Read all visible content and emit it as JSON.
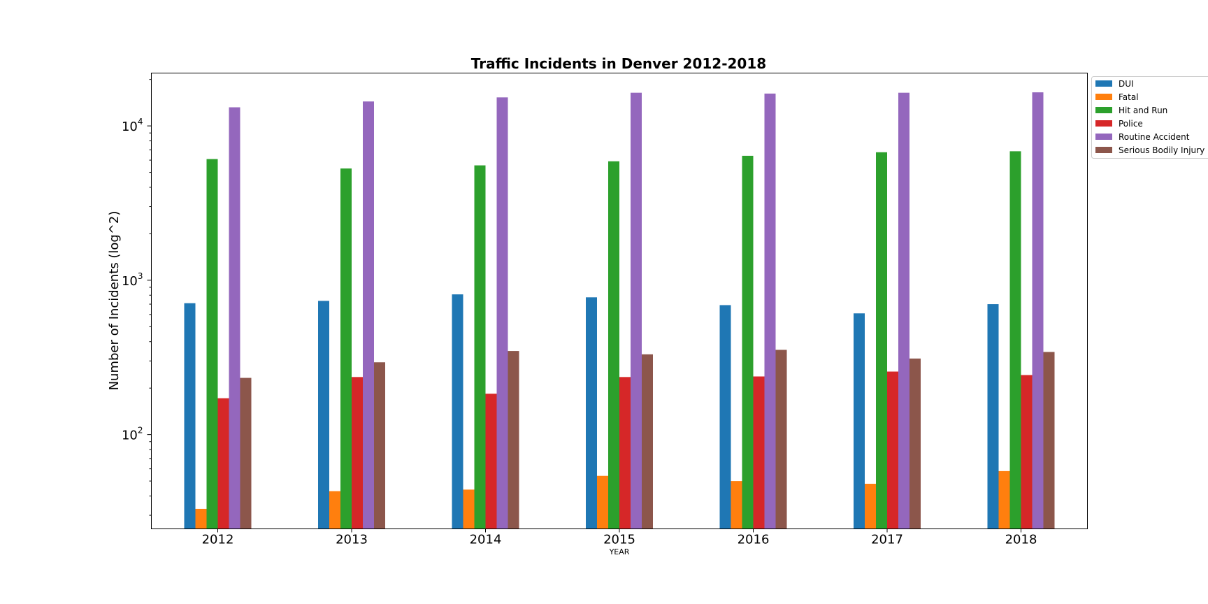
{
  "chart_data": {
    "type": "bar",
    "title": "Traffic Incidents in Denver 2012-2018",
    "xlabel": "YEAR",
    "ylabel": "Number of Incidents (log^2)",
    "yscale": "log",
    "ylim": [
      24.5,
      22000
    ],
    "ytick_labels": [
      {
        "value": 100,
        "base": "10",
        "exp": "2"
      },
      {
        "value": 1000,
        "base": "10",
        "exp": "3"
      },
      {
        "value": 10000,
        "base": "10",
        "exp": "4"
      }
    ],
    "categories": [
      "2012",
      "2013",
      "2014",
      "2015",
      "2016",
      "2017",
      "2018"
    ],
    "legend_position": "outside-top-right",
    "grid": false,
    "series": [
      {
        "name": "DUI",
        "color": "#1f77b4",
        "values": [
          710,
          735,
          810,
          775,
          690,
          610,
          700
        ]
      },
      {
        "name": "Fatal",
        "color": "#ff7f0e",
        "values": [
          33,
          43,
          44,
          54,
          50,
          48,
          58
        ]
      },
      {
        "name": "Hit and Run",
        "color": "#2ca02c",
        "values": [
          6100,
          5300,
          5550,
          5900,
          6400,
          6750,
          6850
        ]
      },
      {
        "name": "Police",
        "color": "#d62728",
        "values": [
          172,
          236,
          184,
          236,
          238,
          256,
          243
        ]
      },
      {
        "name": "Routine Accident",
        "color": "#9467bd",
        "values": [
          13200,
          14400,
          15300,
          16400,
          16200,
          16400,
          16500
        ]
      },
      {
        "name": "Serious Bodily Injury",
        "color": "#8c564b",
        "values": [
          233,
          294,
          348,
          331,
          354,
          311,
          343
        ]
      }
    ]
  }
}
